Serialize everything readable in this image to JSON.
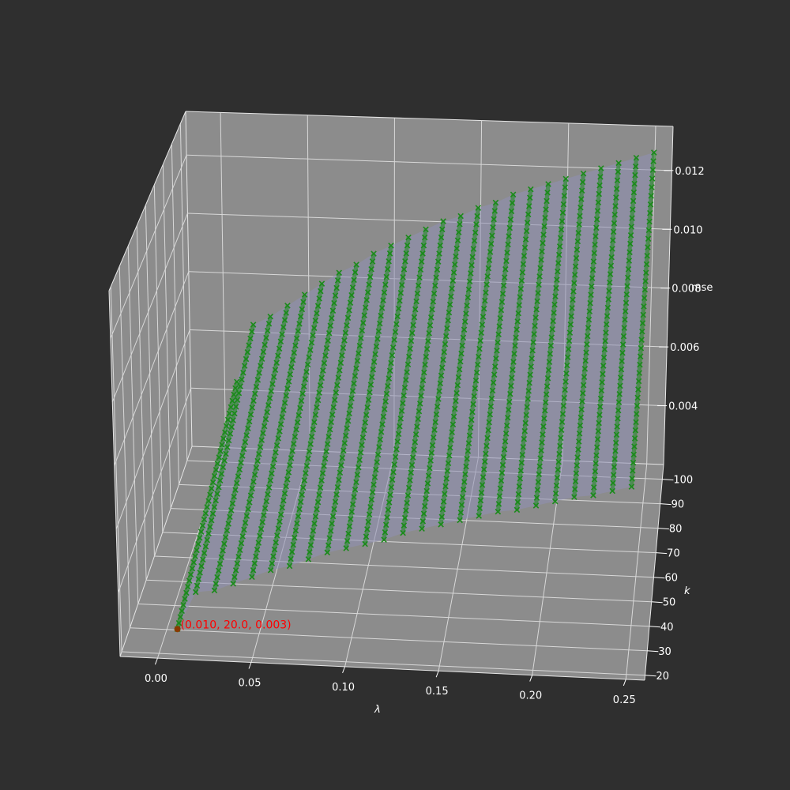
{
  "chart_data": {
    "type": "surface3d",
    "xlabel": "λ",
    "ylabel": "k",
    "zlabel": "mse",
    "x_ticks": [
      "0.00",
      "0.05",
      "0.10",
      "0.15",
      "0.20",
      "0.25"
    ],
    "y_ticks": [
      "20",
      "30",
      "40",
      "50",
      "60",
      "70",
      "80",
      "90",
      "100"
    ],
    "z_ticks": [
      "0.004",
      "0.006",
      "0.008",
      "0.010",
      "0.012"
    ],
    "xlim": [
      -0.02,
      0.26
    ],
    "ylim": [
      18,
      106
    ],
    "zlim": [
      0.002,
      0.0135
    ],
    "lambda": [
      0.01,
      0.02,
      0.03,
      0.04,
      0.05,
      0.06,
      0.07,
      0.08,
      0.09,
      0.1,
      0.11,
      0.12,
      0.13,
      0.14,
      0.15,
      0.16,
      0.17,
      0.18,
      0.19,
      0.2,
      0.21,
      0.22,
      0.23,
      0.24,
      0.25
    ],
    "k": [
      20,
      22,
      24,
      26,
      28,
      30,
      32,
      34,
      36,
      38,
      40,
      42,
      44,
      46,
      48,
      50,
      52,
      54,
      56,
      58,
      60,
      62,
      64,
      66,
      68,
      70,
      72,
      74,
      76,
      78,
      80,
      82,
      84,
      86,
      88,
      90,
      92,
      94,
      96,
      98,
      100
    ],
    "mse_at_k20": [
      0.003,
      0.0045,
      0.0046,
      0.0049,
      0.0052,
      0.0055,
      0.0057,
      0.006,
      0.0063,
      0.0065,
      0.0067,
      0.0069,
      0.0072,
      0.0074,
      0.0076,
      0.0078,
      0.008,
      0.0082,
      0.0083,
      0.0085,
      0.0087,
      0.0089,
      0.009,
      0.0092,
      0.0094
    ],
    "mse_at_k100": [
      0.0048,
      0.0068,
      0.0071,
      0.0075,
      0.0079,
      0.0083,
      0.0087,
      0.009,
      0.0094,
      0.0097,
      0.01,
      0.0103,
      0.0106,
      0.0108,
      0.0111,
      0.0113,
      0.0116,
      0.0118,
      0.012,
      0.0122,
      0.0124,
      0.0126,
      0.0128,
      0.013,
      0.0132
    ],
    "surface_color": "#9090b4",
    "marker_color": "#1a8a1a",
    "marker": "x",
    "minimum": {
      "lambda": 0.01,
      "k": 20,
      "mse": 0.003,
      "label": "(0.010, 20.0, 0.003)",
      "color": "#ff0000"
    },
    "background_color": "#2f2f2f",
    "pane_color": "#8c8c8c",
    "grid": true
  }
}
